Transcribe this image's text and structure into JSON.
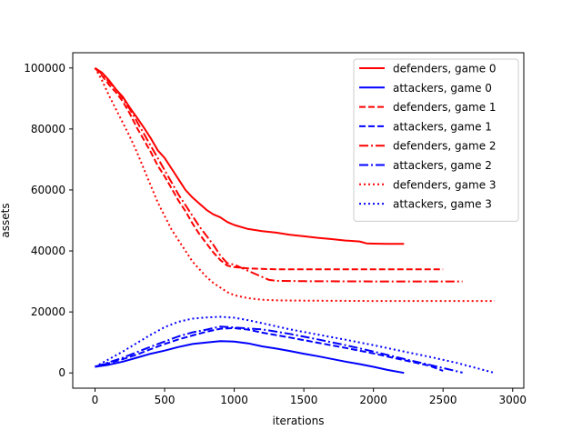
{
  "chart_data": {
    "type": "line",
    "title": "",
    "xlabel": "iterations",
    "ylabel": "assets",
    "xlim": [
      -160,
      3080
    ],
    "ylim": [
      -5000,
      105000
    ],
    "xticks": [
      0,
      500,
      1000,
      1500,
      2000,
      2500,
      3000
    ],
    "yticks": [
      0,
      20000,
      40000,
      60000,
      80000,
      100000
    ],
    "xtick_labels": [
      "0",
      "500",
      "1000",
      "1500",
      "2000",
      "2500",
      "3000"
    ],
    "ytick_labels": [
      "0",
      "20000",
      "40000",
      "60000",
      "80000",
      "100000"
    ],
    "grid": false,
    "legend_position": "top-right",
    "series": [
      {
        "name": "defenders, game 0",
        "color": "#ff0000",
        "dash": "solid",
        "x": [
          0,
          50,
          100,
          150,
          200,
          250,
          300,
          350,
          400,
          450,
          500,
          550,
          600,
          650,
          700,
          750,
          800,
          850,
          900,
          950,
          1000,
          1100,
          1200,
          1300,
          1400,
          1500,
          1600,
          1700,
          1800,
          1900,
          1950,
          2000,
          2100,
          2220
        ],
        "y": [
          100000,
          98500,
          96000,
          93000,
          90500,
          87000,
          83800,
          80500,
          77000,
          73000,
          70500,
          67000,
          63500,
          60000,
          57500,
          55500,
          53500,
          52000,
          51000,
          49500,
          48500,
          47200,
          46500,
          46000,
          45300,
          44800,
          44300,
          43900,
          43400,
          43100,
          42500,
          42400,
          42300,
          42300
        ]
      },
      {
        "name": "attackers, game 0",
        "color": "#0000ff",
        "dash": "solid",
        "x": [
          0,
          100,
          200,
          300,
          400,
          500,
          600,
          700,
          800,
          900,
          1000,
          1100,
          1200,
          1300,
          1400,
          1500,
          1600,
          1700,
          1800,
          1900,
          2000,
          2100,
          2220
        ],
        "y": [
          2000,
          2700,
          3700,
          5000,
          6300,
          7300,
          8500,
          9500,
          10000,
          10400,
          10300,
          9700,
          8700,
          8000,
          7200,
          6300,
          5500,
          4600,
          3700,
          2900,
          2000,
          1000,
          0
        ]
      },
      {
        "name": "defenders, game 1",
        "color": "#ff0000",
        "dash": "dashed",
        "x": [
          0,
          50,
          100,
          150,
          200,
          250,
          300,
          350,
          400,
          450,
          500,
          550,
          600,
          650,
          700,
          750,
          800,
          850,
          900,
          950,
          1000,
          1100,
          1200,
          1300,
          1500,
          2000,
          2500
        ],
        "y": [
          100000,
          97500,
          94500,
          92000,
          89000,
          85000,
          80500,
          76500,
          72500,
          68000,
          64500,
          60500,
          56500,
          53000,
          49000,
          45500,
          42500,
          39500,
          37000,
          35200,
          34700,
          34300,
          34100,
          34000,
          34000,
          34000,
          34000
        ]
      },
      {
        "name": "attackers, game 1",
        "color": "#0000ff",
        "dash": "dashed",
        "x": [
          0,
          100,
          200,
          300,
          400,
          500,
          600,
          700,
          800,
          900,
          1000,
          1100,
          1200,
          1400,
          1600,
          1800,
          2000,
          2200,
          2400,
          2500
        ],
        "y": [
          2000,
          3200,
          4500,
          6000,
          7800,
          9500,
          11000,
          12300,
          13500,
          14500,
          14700,
          14200,
          13200,
          11600,
          9900,
          8200,
          6400,
          4400,
          2400,
          700
        ]
      },
      {
        "name": "defenders, game 2",
        "color": "#ff0000",
        "dash": "dashdot",
        "x": [
          0,
          50,
          100,
          150,
          200,
          250,
          300,
          350,
          400,
          450,
          500,
          550,
          600,
          650,
          700,
          750,
          800,
          850,
          900,
          950,
          1000,
          1100,
          1200,
          1250,
          1300,
          1500,
          2000,
          2500,
          2640
        ],
        "y": [
          100000,
          98000,
          95500,
          93000,
          90000,
          86500,
          82500,
          78500,
          74500,
          70500,
          66500,
          62500,
          58500,
          55000,
          51500,
          48000,
          45000,
          42000,
          38500,
          36000,
          35500,
          33500,
          31500,
          30500,
          30200,
          30100,
          30000,
          30000,
          30000
        ]
      },
      {
        "name": "attackers, game 2",
        "color": "#0000ff",
        "dash": "dashdot",
        "x": [
          0,
          100,
          200,
          300,
          400,
          500,
          600,
          700,
          800,
          900,
          1000,
          1100,
          1200,
          1400,
          1600,
          1800,
          2000,
          2200,
          2400,
          2640
        ],
        "y": [
          2000,
          3500,
          5000,
          6800,
          8600,
          10300,
          12000,
          13300,
          14200,
          15200,
          14900,
          14600,
          14300,
          12800,
          11000,
          9100,
          7000,
          4800,
          2700,
          100
        ]
      },
      {
        "name": "defenders, game 3",
        "color": "#ff0000",
        "dash": "dotted",
        "x": [
          0,
          50,
          100,
          150,
          200,
          250,
          300,
          350,
          400,
          450,
          500,
          550,
          600,
          650,
          700,
          750,
          800,
          850,
          900,
          950,
          1000,
          1050,
          1100,
          1200,
          1300,
          1500,
          2000,
          2500,
          2870
        ],
        "y": [
          100000,
          96000,
          91000,
          86500,
          82000,
          77500,
          72500,
          67000,
          61500,
          56000,
          51500,
          47000,
          43500,
          40000,
          36500,
          34000,
          31500,
          29500,
          28000,
          26500,
          25500,
          25000,
          24500,
          24000,
          23800,
          23700,
          23600,
          23600,
          23600
        ]
      },
      {
        "name": "attackers, game 3",
        "color": "#0000ff",
        "dash": "dotted",
        "x": [
          0,
          100,
          200,
          300,
          400,
          500,
          600,
          700,
          800,
          900,
          1000,
          1100,
          1200,
          1400,
          1600,
          1800,
          2000,
          2200,
          2400,
          2600,
          2870
        ],
        "y": [
          2000,
          4500,
          7000,
          9800,
          12500,
          15000,
          16800,
          17800,
          18200,
          18400,
          18100,
          17300,
          16300,
          14300,
          12600,
          10900,
          9100,
          7200,
          5300,
          3300,
          0
        ]
      }
    ]
  }
}
